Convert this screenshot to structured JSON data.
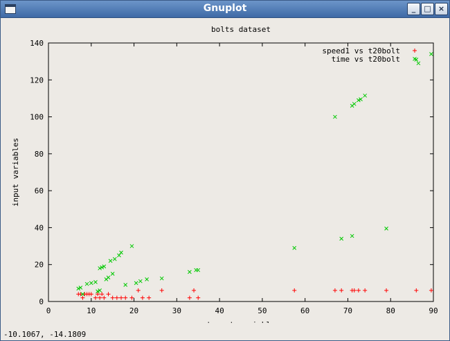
{
  "window": {
    "title": "Gnuplot",
    "buttons": {
      "minimize": "_",
      "maximize": "□",
      "close": "×"
    }
  },
  "status": {
    "coords": "-10.1067, -14.1809"
  },
  "colors": {
    "series1": "#ff0000",
    "series2": "#00c800"
  },
  "chart_data": {
    "type": "scatter",
    "title": "bolts dataset",
    "xlabel": "target variable",
    "ylabel": "input variables",
    "xlim": [
      0,
      90
    ],
    "ylim": [
      0,
      140
    ],
    "xticks": [
      0,
      10,
      20,
      30,
      40,
      50,
      60,
      70,
      80,
      90
    ],
    "yticks": [
      0,
      20,
      40,
      60,
      80,
      100,
      120,
      140
    ],
    "grid": false,
    "legend_position": "top-right",
    "series": [
      {
        "name": "speed1 vs t20bolt",
        "marker": "+",
        "color": "#ff0000",
        "points": [
          [
            7,
            4
          ],
          [
            7.5,
            4
          ],
          [
            8,
            2
          ],
          [
            8.5,
            4
          ],
          [
            9,
            4
          ],
          [
            9.5,
            4
          ],
          [
            10,
            4
          ],
          [
            11,
            2
          ],
          [
            11.5,
            4
          ],
          [
            12,
            2
          ],
          [
            12.5,
            4
          ],
          [
            13,
            2
          ],
          [
            14,
            4
          ],
          [
            15,
            2
          ],
          [
            16,
            2
          ],
          [
            17,
            2
          ],
          [
            18,
            2
          ],
          [
            19.5,
            2
          ],
          [
            21,
            6
          ],
          [
            22,
            2
          ],
          [
            23.5,
            2
          ],
          [
            26.5,
            6
          ],
          [
            33,
            2
          ],
          [
            34,
            6
          ],
          [
            35,
            2
          ],
          [
            57.5,
            6
          ],
          [
            67,
            6
          ],
          [
            68.5,
            6
          ],
          [
            71,
            6
          ],
          [
            71.5,
            6
          ],
          [
            72.5,
            6
          ],
          [
            74,
            6
          ],
          [
            79,
            6
          ],
          [
            86,
            6
          ],
          [
            89.5,
            6
          ]
        ]
      },
      {
        "name": "time vs t20bolt",
        "marker": "x",
        "color": "#00c800",
        "points": [
          [
            7,
            7
          ],
          [
            7.5,
            7.5
          ],
          [
            8,
            4
          ],
          [
            9,
            9.5
          ],
          [
            10,
            10
          ],
          [
            11,
            10.5
          ],
          [
            11.5,
            5.5
          ],
          [
            12,
            6
          ],
          [
            12,
            18
          ],
          [
            12.5,
            18.5
          ],
          [
            13,
            19
          ],
          [
            13.5,
            12
          ],
          [
            14,
            13
          ],
          [
            14.5,
            22
          ],
          [
            15,
            15
          ],
          [
            15.5,
            23
          ],
          [
            16.5,
            25
          ],
          [
            17,
            26.5
          ],
          [
            18,
            9
          ],
          [
            19.5,
            30
          ],
          [
            20.5,
            10
          ],
          [
            21.5,
            11
          ],
          [
            23,
            12
          ],
          [
            26.5,
            12.5
          ],
          [
            33,
            16
          ],
          [
            34.5,
            17
          ],
          [
            35,
            17
          ],
          [
            57.5,
            29
          ],
          [
            67,
            100
          ],
          [
            68.5,
            34
          ],
          [
            71,
            106
          ],
          [
            71.5,
            107
          ],
          [
            72.5,
            109
          ],
          [
            73,
            109.5
          ],
          [
            74,
            111.5
          ],
          [
            79,
            39.5
          ],
          [
            71,
            35.5
          ],
          [
            86,
            131
          ],
          [
            86.5,
            129
          ],
          [
            89.5,
            134
          ]
        ]
      }
    ]
  }
}
